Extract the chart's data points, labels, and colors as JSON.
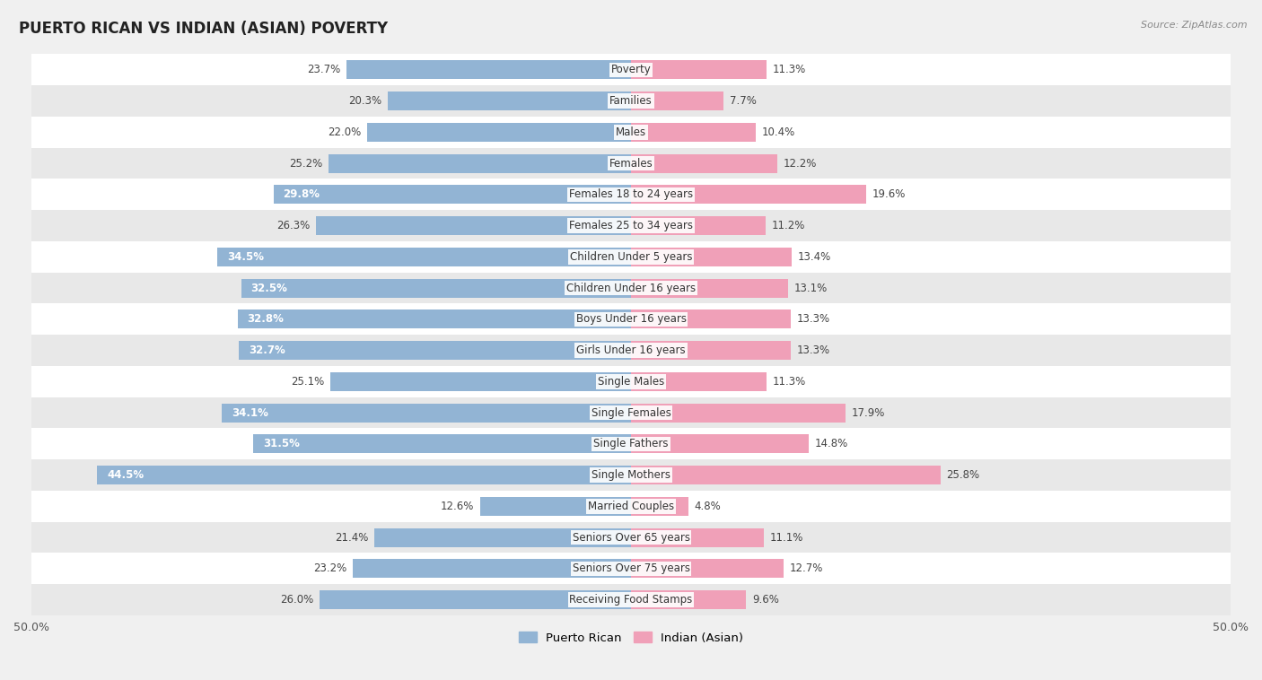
{
  "title": "PUERTO RICAN VS INDIAN (ASIAN) POVERTY",
  "source": "Source: ZipAtlas.com",
  "categories": [
    "Poverty",
    "Families",
    "Males",
    "Females",
    "Females 18 to 24 years",
    "Females 25 to 34 years",
    "Children Under 5 years",
    "Children Under 16 years",
    "Boys Under 16 years",
    "Girls Under 16 years",
    "Single Males",
    "Single Females",
    "Single Fathers",
    "Single Mothers",
    "Married Couples",
    "Seniors Over 65 years",
    "Seniors Over 75 years",
    "Receiving Food Stamps"
  ],
  "puerto_rican": [
    23.7,
    20.3,
    22.0,
    25.2,
    29.8,
    26.3,
    34.5,
    32.5,
    32.8,
    32.7,
    25.1,
    34.1,
    31.5,
    44.5,
    12.6,
    21.4,
    23.2,
    26.0
  ],
  "indian_asian": [
    11.3,
    7.7,
    10.4,
    12.2,
    19.6,
    11.2,
    13.4,
    13.1,
    13.3,
    13.3,
    11.3,
    17.9,
    14.8,
    25.8,
    4.8,
    11.1,
    12.7,
    9.6
  ],
  "puerto_rican_color": "#92b4d4",
  "indian_asian_color": "#f0a0b8",
  "background_color": "#f0f0f0",
  "row_bg_light": "#ffffff",
  "row_bg_dark": "#e8e8e8",
  "axis_max": 50.0,
  "label_fontsize": 8.5,
  "title_fontsize": 12,
  "bar_height": 0.6,
  "legend_pr": "Puerto Rican",
  "legend_ia": "Indian (Asian)",
  "inside_label_threshold": 28.0
}
